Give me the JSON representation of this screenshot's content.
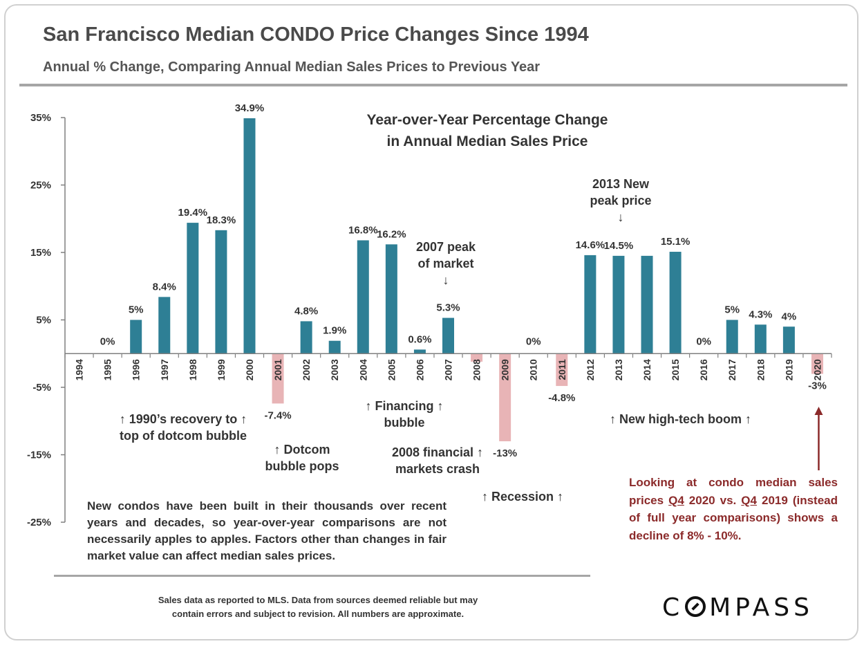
{
  "header": {
    "title": "San Francisco Median CONDO Price Changes Since 1994",
    "subtitle": "Annual % Change, Comparing Annual Median Sales Prices to Previous Year"
  },
  "chart_data": {
    "type": "bar",
    "title": "Year-over-Year Percentage Change in Annual Median Sales Price",
    "title_lines": [
      "Year-over-Year Percentage Change",
      "in Annual Median Sales Price"
    ],
    "xlabel": "",
    "ylabel": "",
    "ylim": [
      -25,
      35
    ],
    "yticks": [
      35,
      25,
      15,
      5,
      -5,
      -15,
      -25
    ],
    "ytick_labels": [
      "35%",
      "25%",
      "15%",
      "5%",
      "-5%",
      "-15%",
      "-25%"
    ],
    "categories": [
      "1994",
      "1995",
      "1996",
      "1997",
      "1998",
      "1999",
      "2000",
      "2001",
      "2002",
      "2003",
      "2004",
      "2005",
      "2006",
      "2007",
      "2008",
      "2009",
      "2010",
      "2011",
      "2012",
      "2013",
      "2014",
      "2015",
      "2016",
      "2017",
      "2018",
      "2019",
      "2020"
    ],
    "values": [
      null,
      0,
      5,
      8.4,
      19.4,
      18.3,
      34.9,
      -7.4,
      4.8,
      1.9,
      16.8,
      16.2,
      0.6,
      5.3,
      -1.2,
      -13,
      0,
      -4.8,
      14.6,
      14.5,
      14.5,
      15.1,
      0,
      5,
      4.3,
      4,
      -3
    ],
    "data_labels": [
      "",
      "0%",
      "5%",
      "8.4%",
      "19.4%",
      "18.3%",
      "34.9%",
      "-7.4%",
      "4.8%",
      "1.9%",
      "16.8%",
      "16.2%",
      "0.6%",
      "5.3%",
      "",
      "-13%",
      "0%",
      "-4.8%",
      "14.6%",
      "14.5%",
      "",
      "15.1%",
      "0%",
      "5%",
      "4.3%",
      "4%",
      "-3%"
    ],
    "colors": {
      "positive": "#2e7f95",
      "negative": "#e8b4b6",
      "axis": "#7f7f7f"
    },
    "grid": false,
    "legend": "none"
  },
  "annotations": {
    "recovery": [
      "↑ 1990’s recovery to ↑",
      "top of dotcom bubble"
    ],
    "dotcom": [
      "↑ Dotcom",
      "bubble pops"
    ],
    "financing": [
      "↑ Financing ↑",
      "bubble"
    ],
    "financial_crash": [
      "2008 financial ↑",
      "markets crash"
    ],
    "peak_2007": [
      "2007 peak",
      "of market",
      "↓"
    ],
    "recession": "↑  Recession  ↑",
    "peak_2013": [
      "2013 New",
      "peak price",
      "↓"
    ],
    "hightech": "↑ New high-tech boom ↑"
  },
  "note": "New condos have been built in their thousands over recent years and decades, so year-over-year comparisons are not necessarily apples to apples. Factors other than changes in fair market value can affect median sales prices.",
  "red_note": {
    "part1": "Looking at condo median sales prices ",
    "q1": "Q4",
    "part2": " 2020 vs. ",
    "q2": "Q4",
    "part3": " 2019 (instead of full year comparisons) shows a decline of 8% - 10%.",
    "color": "#8b2a2a"
  },
  "footer": [
    "Sales data as reported to MLS. Data from sources deemed reliable but may",
    "contain errors and subject to revision. All numbers are approximate."
  ],
  "logo": {
    "pre": "C",
    "post": "MPASS"
  }
}
